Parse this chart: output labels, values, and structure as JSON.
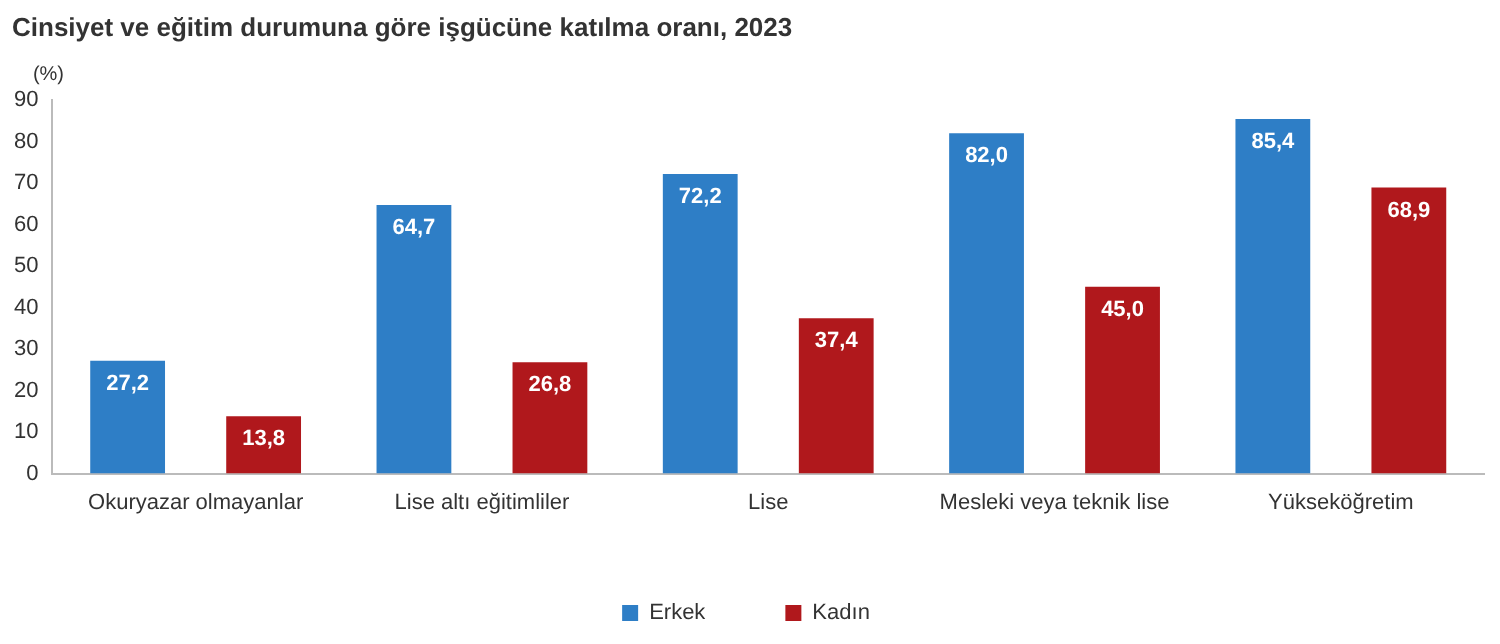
{
  "chart_data": {
    "type": "bar",
    "title": "Cinsiyet ve eğitim durumuna göre işgücüne katılma oranı, 2023",
    "ylabel": "(%)",
    "categories": [
      "Okuryazar olmayanlar",
      "Lise altı eğitimliler",
      "Lise",
      "Mesleki veya teknik lise",
      "Yükseköğretim"
    ],
    "series": [
      {
        "name": "Erkek",
        "color": "#2e7ec6",
        "values": [
          27.2,
          64.7,
          72.2,
          82.0,
          85.4
        ],
        "value_labels": [
          "27,2",
          "64,7",
          "72,2",
          "82,0",
          "85,4"
        ]
      },
      {
        "name": "Kadın",
        "color": "#b0181c",
        "values": [
          13.8,
          26.8,
          37.4,
          45.0,
          68.9
        ],
        "value_labels": [
          "13,8",
          "26,8",
          "37,4",
          "45,0",
          "68,9"
        ]
      }
    ],
    "ylim": [
      0,
      90
    ],
    "yticks": [
      0,
      10,
      20,
      30,
      40,
      50,
      60,
      70,
      80,
      90
    ],
    "grid": false,
    "legend": "bottom"
  }
}
